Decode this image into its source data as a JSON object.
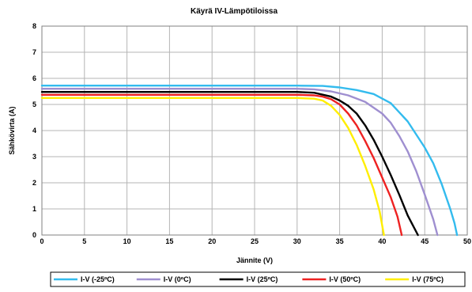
{
  "chart_data": {
    "type": "line",
    "title": "Käyrä IV-Lämpötiloissa",
    "xlabel": "Jännite (V)",
    "ylabel": "Sähkövirta (A)",
    "xlim": [
      0,
      50
    ],
    "ylim": [
      0,
      8
    ],
    "xticks": [
      0,
      5,
      10,
      15,
      20,
      25,
      30,
      35,
      40,
      45,
      50
    ],
    "yticks": [
      0,
      1,
      2,
      3,
      4,
      5,
      6,
      7,
      8
    ],
    "grid": true,
    "legend_position": "bottom",
    "series": [
      {
        "name": "I-V (-25ºC)",
        "color": "#33bbee",
        "points": [
          [
            0,
            5.72
          ],
          [
            30,
            5.72
          ],
          [
            33,
            5.71
          ],
          [
            35,
            5.65
          ],
          [
            37,
            5.55
          ],
          [
            39,
            5.4
          ],
          [
            41,
            5.05
          ],
          [
            43,
            4.35
          ],
          [
            45,
            3.35
          ],
          [
            46,
            2.75
          ],
          [
            47,
            1.95
          ],
          [
            48,
            1.0
          ],
          [
            48.5,
            0.45
          ],
          [
            48.8,
            0
          ]
        ]
      },
      {
        "name": "I-V (0ºC)",
        "color": "#9f8fd0",
        "points": [
          [
            0,
            5.6
          ],
          [
            30,
            5.6
          ],
          [
            32,
            5.58
          ],
          [
            34,
            5.5
          ],
          [
            36,
            5.35
          ],
          [
            38,
            5.1
          ],
          [
            40,
            4.65
          ],
          [
            41,
            4.3
          ],
          [
            42,
            3.8
          ],
          [
            43,
            3.2
          ],
          [
            44,
            2.45
          ],
          [
            45,
            1.55
          ],
          [
            46,
            0.6
          ],
          [
            46.5,
            0
          ]
        ]
      },
      {
        "name": "I-V (25ºC)",
        "color": "#000000",
        "points": [
          [
            0,
            5.48
          ],
          [
            30,
            5.48
          ],
          [
            32,
            5.45
          ],
          [
            34,
            5.3
          ],
          [
            35,
            5.15
          ],
          [
            36,
            4.95
          ],
          [
            37,
            4.65
          ],
          [
            38,
            4.2
          ],
          [
            39,
            3.65
          ],
          [
            40,
            3.0
          ],
          [
            41,
            2.3
          ],
          [
            42,
            1.55
          ],
          [
            43,
            0.75
          ],
          [
            44.2,
            0
          ]
        ]
      },
      {
        "name": "I-V (50ºC)",
        "color": "#ee2222",
        "points": [
          [
            0,
            5.37
          ],
          [
            30,
            5.37
          ],
          [
            32,
            5.35
          ],
          [
            33,
            5.3
          ],
          [
            34,
            5.2
          ],
          [
            35,
            5.0
          ],
          [
            36,
            4.65
          ],
          [
            37,
            4.2
          ],
          [
            38,
            3.6
          ],
          [
            39,
            2.95
          ],
          [
            40,
            2.2
          ],
          [
            41,
            1.45
          ],
          [
            41.8,
            0.7
          ],
          [
            42.3,
            0
          ]
        ]
      },
      {
        "name": "I-V (75ºC)",
        "color": "#ffee00",
        "points": [
          [
            0,
            5.25
          ],
          [
            30,
            5.25
          ],
          [
            32,
            5.22
          ],
          [
            33,
            5.15
          ],
          [
            34,
            4.95
          ],
          [
            35,
            4.6
          ],
          [
            36,
            4.1
          ],
          [
            37,
            3.45
          ],
          [
            38,
            2.65
          ],
          [
            39,
            1.75
          ],
          [
            39.7,
            0.9
          ],
          [
            40.2,
            0
          ]
        ]
      }
    ]
  }
}
